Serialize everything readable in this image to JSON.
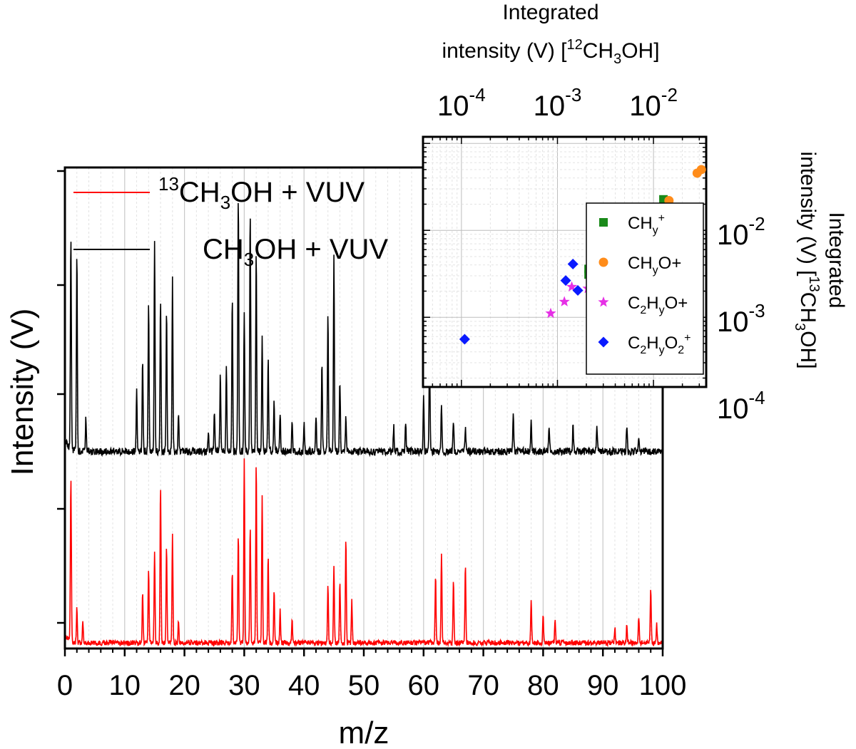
{
  "chart_data": [
    {
      "type": "line",
      "xlabel": "m/z",
      "ylabel": "Intensity (V)",
      "xlim": [
        0,
        100
      ],
      "x_ticks": [
        "0",
        "10",
        "20",
        "30",
        "40",
        "50",
        "60",
        "70",
        "80",
        "90",
        "100"
      ],
      "y_tick_labels": "none",
      "grid": true,
      "legend_position": "top-left",
      "series": [
        {
          "name": "CH3OH + VUV",
          "legend": {
            "pre_sup": "",
            "a": "CH",
            "sub": "3",
            "b": "OH + VUV"
          },
          "color": "#000000",
          "baseline": 0.03,
          "peaks": [
            [
              1,
              0.78
            ],
            [
              2,
              0.73
            ],
            [
              3.5,
              0.12
            ],
            [
              12,
              0.22
            ],
            [
              13,
              0.34
            ],
            [
              14,
              0.54
            ],
            [
              15,
              0.77
            ],
            [
              16,
              0.56
            ],
            [
              17,
              0.52
            ],
            [
              18,
              0.63
            ],
            [
              19,
              0.14
            ],
            [
              24,
              0.08
            ],
            [
              25,
              0.15
            ],
            [
              26,
              0.28
            ],
            [
              27,
              0.32
            ],
            [
              28,
              0.56
            ],
            [
              29,
              0.93
            ],
            [
              30,
              0.52
            ],
            [
              31,
              0.88
            ],
            [
              32,
              0.74
            ],
            [
              33,
              0.42
            ],
            [
              34,
              0.34
            ],
            [
              35,
              0.18
            ],
            [
              36,
              0.14
            ],
            [
              38,
              0.12
            ],
            [
              40,
              0.1
            ],
            [
              42,
              0.13
            ],
            [
              43,
              0.33
            ],
            [
              44,
              0.5
            ],
            [
              45,
              0.72
            ],
            [
              46,
              0.26
            ],
            [
              47,
              0.12
            ],
            [
              55,
              0.09
            ],
            [
              57,
              0.1
            ],
            [
              60,
              0.2
            ],
            [
              61,
              0.36
            ],
            [
              63,
              0.17
            ],
            [
              65,
              0.12
            ],
            [
              67,
              0.08
            ],
            [
              75,
              0.15
            ],
            [
              78,
              0.11
            ],
            [
              81,
              0.09
            ],
            [
              85,
              0.1
            ],
            [
              89,
              0.09
            ],
            [
              94,
              0.1
            ],
            [
              96,
              0.06
            ]
          ]
        },
        {
          "name": "13CH3OH + VUV",
          "legend": {
            "pre_sup": "13",
            "a": "CH",
            "sub": "3",
            "b": "OH + VUV"
          },
          "color": "#ff0000",
          "baseline": 0.03,
          "peaks": [
            [
              1,
              0.88
            ],
            [
              2,
              0.18
            ],
            [
              3,
              0.12
            ],
            [
              13,
              0.26
            ],
            [
              14,
              0.38
            ],
            [
              15,
              0.48
            ],
            [
              16,
              0.85
            ],
            [
              17,
              0.52
            ],
            [
              18,
              0.58
            ],
            [
              19,
              0.12
            ],
            [
              28,
              0.38
            ],
            [
              29,
              0.58
            ],
            [
              30,
              0.98
            ],
            [
              31,
              0.62
            ],
            [
              32,
              0.95
            ],
            [
              33,
              0.78
            ],
            [
              34,
              0.46
            ],
            [
              35,
              0.28
            ],
            [
              36,
              0.18
            ],
            [
              38,
              0.12
            ],
            [
              44,
              0.3
            ],
            [
              45,
              0.42
            ],
            [
              46,
              0.32
            ],
            [
              47,
              0.55
            ],
            [
              48,
              0.22
            ],
            [
              62,
              0.36
            ],
            [
              63,
              0.48
            ],
            [
              65,
              0.34
            ],
            [
              67,
              0.41
            ],
            [
              78,
              0.22
            ],
            [
              80,
              0.14
            ],
            [
              82,
              0.12
            ],
            [
              92,
              0.08
            ],
            [
              94,
              0.1
            ],
            [
              96,
              0.14
            ],
            [
              98,
              0.3
            ],
            [
              99,
              0.1
            ]
          ]
        }
      ]
    },
    {
      "type": "scatter",
      "xlabel_lines": [
        "Integrated",
        "intensity (V) ["
      ],
      "xlabel_iso": {
        "sup": "12",
        "a": "CH",
        "sub": "3",
        "b": "OH]"
      },
      "ylabel_lines": [
        "Integrated",
        "intensity (V) ["
      ],
      "ylabel_iso": {
        "sup": "13",
        "a": "CH",
        "sub": "3",
        "b": "OH]"
      },
      "xscale": "log",
      "yscale": "log",
      "xlim": [
        3.98e-05,
        0.0354
      ],
      "ylim": [
        0.000158,
        0.119
      ],
      "x_ticks": [
        {
          "base": "10",
          "exp": "-4",
          "value": 0.0001
        },
        {
          "base": "10",
          "exp": "-3",
          "value": 0.001
        },
        {
          "base": "10",
          "exp": "-2",
          "value": 0.01
        }
      ],
      "y_ticks": [
        {
          "base": "10",
          "exp": "-2",
          "value": 0.01
        },
        {
          "base": "10",
          "exp": "-3",
          "value": 0.001
        },
        {
          "base": "10",
          "exp": "-4",
          "value": 0.0001
        }
      ],
      "grid": true,
      "legend_position": "bottom-right",
      "series": [
        {
          "name": "CHy+",
          "legend": {
            "a": "CH",
            "sub": "y",
            "sup": "+",
            "b": ""
          },
          "marker": "square",
          "color": "#1a8a1a",
          "points": [
            [
              0.00211,
              0.0031
            ],
            [
              0.00211,
              0.0036
            ],
            [
              0.00546,
              0.0078
            ],
            [
              0.00638,
              0.0087
            ],
            [
              0.0127,
              0.0227
            ]
          ]
        },
        {
          "name": "CHyO+",
          "legend": {
            "a": "CH",
            "sub": "y",
            "sup": "",
            "b": "O+"
          },
          "marker": "circle",
          "color": "#ff8c1a",
          "points": [
            [
              0.0077,
              0.0103
            ],
            [
              0.0086,
              0.0118
            ],
            [
              0.0145,
              0.022
            ],
            [
              0.0285,
              0.0455
            ],
            [
              0.0315,
              0.05
            ]
          ]
        },
        {
          "name": "C2HyO+",
          "legend": {
            "a": "C",
            "sub": "2",
            "sup": "",
            "b": "H",
            "sub2": "y",
            "c": "O+"
          },
          "marker": "star",
          "color": "#e630e6",
          "points": [
            [
              0.00085,
              0.00111
            ],
            [
              0.00118,
              0.00151
            ],
            [
              0.00141,
              0.00224
            ],
            [
              0.00207,
              0.00214
            ],
            [
              0.00271,
              0.00365
            ],
            [
              0.00714,
              0.00851
            ]
          ]
        },
        {
          "name": "C2HyO2+",
          "legend": {
            "a": "C",
            "sub": "2",
            "sup": "",
            "b": "H",
            "sub2": "y",
            "c": "O",
            "sub3": "2",
            "sup3": "+"
          },
          "marker": "diamond",
          "color": "#0a1aff",
          "points": [
            [
              0.000108,
              0.00056
            ],
            [
              0.00122,
              0.00265
            ],
            [
              0.00145,
              0.0041
            ],
            [
              0.00163,
              0.00204
            ],
            [
              0.00418,
              0.00487
            ]
          ]
        }
      ]
    }
  ]
}
